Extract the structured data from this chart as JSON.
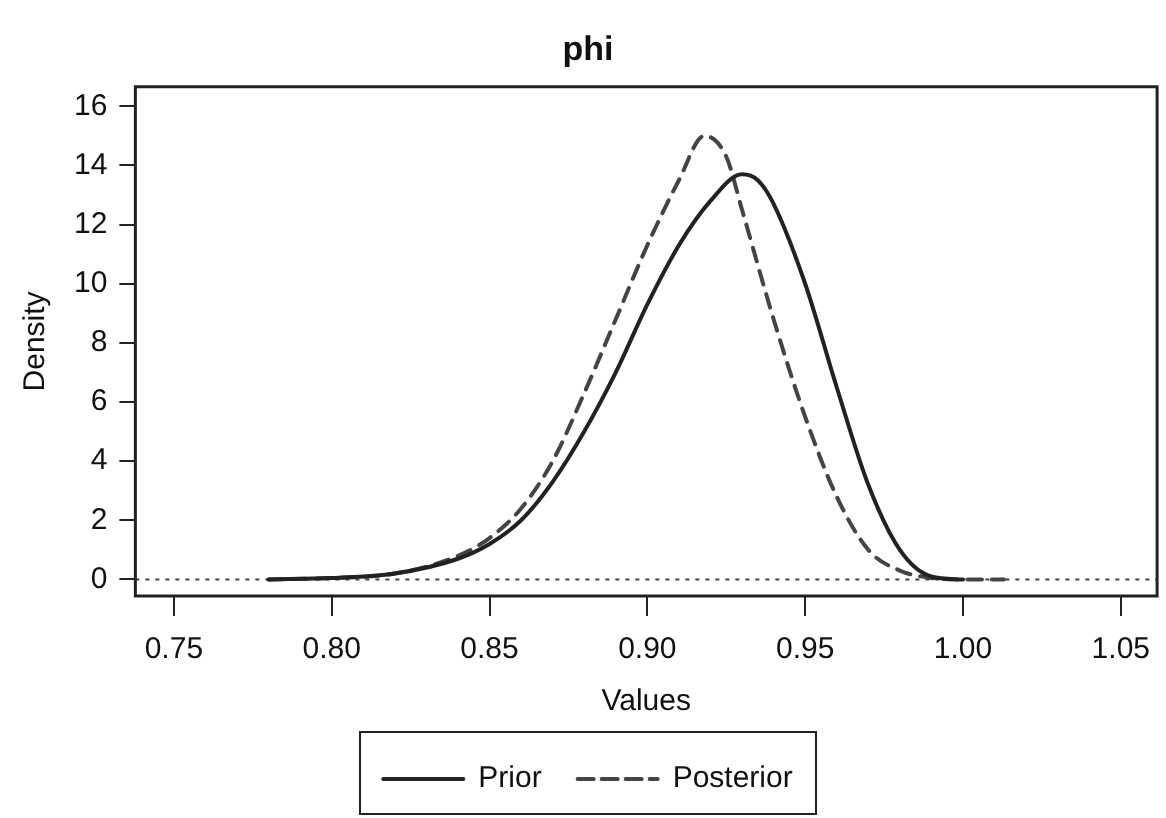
{
  "chart_data": {
    "type": "line",
    "title": "phi",
    "xlabel": "Values",
    "ylabel": "Density",
    "series": [
      {
        "name": "Prior",
        "color": "#222222",
        "line_style": "solid",
        "x": [
          0.78,
          0.8,
          0.82,
          0.84,
          0.85,
          0.86,
          0.87,
          0.88,
          0.89,
          0.9,
          0.91,
          0.92,
          0.93,
          0.935,
          0.94,
          0.95,
          0.96,
          0.97,
          0.98,
          0.99,
          1.0
        ],
        "values": [
          0,
          0.05,
          0.2,
          0.7,
          1.2,
          2.0,
          3.3,
          5.0,
          7.0,
          9.3,
          11.3,
          12.8,
          13.7,
          13.5,
          12.7,
          10.0,
          6.5,
          3.2,
          1.0,
          0.1,
          0
        ]
      },
      {
        "name": "Posterior",
        "color": "#444444",
        "line_style": "dashed",
        "x": [
          0.78,
          0.8,
          0.82,
          0.84,
          0.85,
          0.86,
          0.87,
          0.88,
          0.89,
          0.9,
          0.91,
          0.918,
          0.925,
          0.93,
          0.94,
          0.95,
          0.96,
          0.97,
          0.98,
          0.99,
          1.0,
          1.013
        ],
        "values": [
          0,
          0.05,
          0.2,
          0.8,
          1.4,
          2.4,
          4.0,
          6.3,
          8.8,
          11.3,
          13.5,
          15.0,
          14.3,
          12.5,
          8.8,
          5.5,
          2.8,
          1.0,
          0.3,
          0.05,
          0,
          0
        ]
      }
    ],
    "xlim": [
      0.7378,
      1.0615
    ],
    "ylim": [
      -0.56,
      16.66
    ],
    "xticks": [
      {
        "value": 0.75,
        "label": "0.75"
      },
      {
        "value": 0.8,
        "label": "0.80"
      },
      {
        "value": 0.85,
        "label": "0.85"
      },
      {
        "value": 0.9,
        "label": "0.90"
      },
      {
        "value": 0.95,
        "label": "0.95"
      },
      {
        "value": 1.0,
        "label": "1.00"
      },
      {
        "value": 1.05,
        "label": "1.05"
      }
    ],
    "yticks": [
      0,
      2,
      4,
      6,
      8,
      10,
      12,
      14,
      16
    ],
    "ref_lines": [
      {
        "axis": "y",
        "value": 0,
        "line_style": "dotted",
        "color": "#444444"
      }
    ],
    "grid": false,
    "legend": "bottom",
    "marker": "none"
  }
}
